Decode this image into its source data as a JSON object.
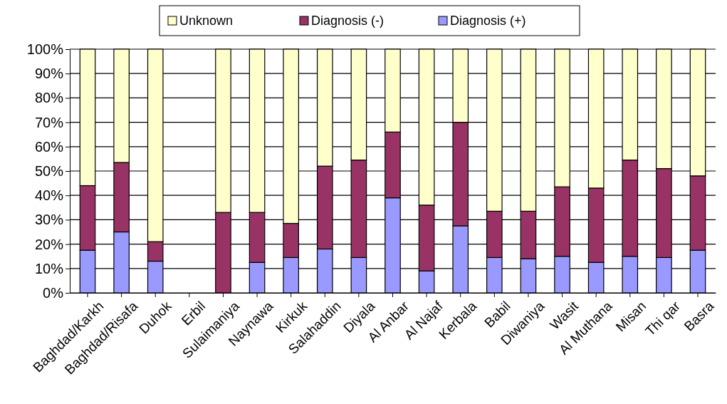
{
  "chart_data": {
    "type": "bar",
    "stacked": true,
    "grid": "y",
    "legend": "top",
    "categories": [
      "Baghdad/Karkh",
      "Baghdad/Risafa",
      "Duhok",
      "Erbil",
      "Sulaimaniya",
      "Naynawa",
      "Kirkuk",
      "Salahaddin",
      "Diyala",
      "Al Anbar",
      "Al Najaf",
      "Kerbala",
      "Babil",
      "Diwaniya",
      "Wasit",
      "Al Muthana",
      "Misan",
      "Thi qar",
      "Basra"
    ],
    "series": [
      {
        "name": "Diagnosis (+)",
        "color": "#9999ff",
        "values": [
          17.5,
          25,
          13,
          0,
          0,
          12.5,
          14.5,
          18,
          14.5,
          39,
          9,
          27.5,
          14.5,
          14,
          15,
          12.5,
          15,
          14.5,
          17.5
        ]
      },
      {
        "name": "Diagnosis (-)",
        "color": "#993366",
        "values": [
          26.5,
          28.5,
          8,
          0,
          33,
          20.5,
          14,
          34,
          40,
          27,
          27,
          42.5,
          19,
          19.5,
          28.5,
          30.5,
          39.5,
          36.5,
          30.5
        ]
      },
      {
        "name": "Unknown",
        "color": "#ffffcc",
        "values": [
          56,
          46.5,
          79,
          0,
          67,
          67,
          71.5,
          48,
          45.5,
          34,
          64,
          30,
          66.5,
          66.5,
          56.5,
          57,
          45.5,
          49,
          52
        ]
      }
    ],
    "ylim": [
      0,
      100
    ],
    "yticks": [
      {
        "value": 0,
        "label": "0%"
      },
      {
        "value": 10,
        "label": "10%"
      },
      {
        "value": 20,
        "label": "20%"
      },
      {
        "value": 30,
        "label": "30%"
      },
      {
        "value": 40,
        "label": "40%"
      },
      {
        "value": 50,
        "label": "50%"
      },
      {
        "value": 60,
        "label": "60%"
      },
      {
        "value": 70,
        "label": "70%"
      },
      {
        "value": 80,
        "label": "80%"
      },
      {
        "value": 90,
        "label": "90%"
      },
      {
        "value": 100,
        "label": "100%"
      }
    ]
  }
}
